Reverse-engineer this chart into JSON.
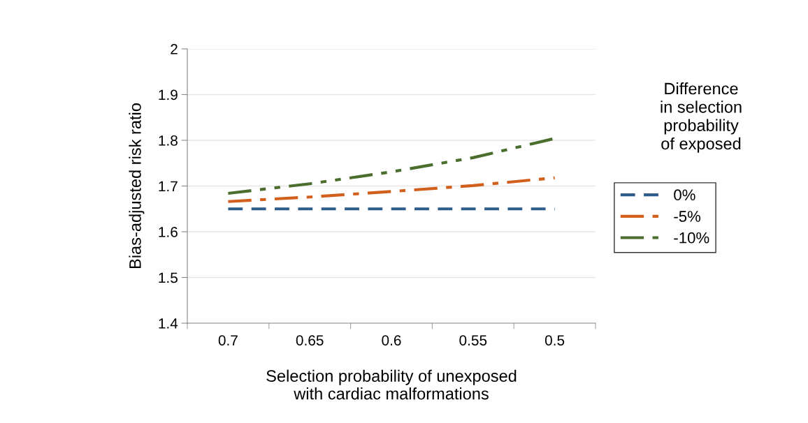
{
  "chart_data": {
    "type": "line",
    "xlabel": "Selection probability of unexposed\nwith cardiac malformations",
    "ylabel": "Bias-adjusted risk ratio",
    "legend_title": "Difference\nin selection\nprobability\nof exposed",
    "categories": [
      "0.7",
      "0.65",
      "0.6",
      "0.55",
      "0.5"
    ],
    "series": [
      {
        "name": "0%",
        "color": "#2e5d8c",
        "line_style": "dashed",
        "values": [
          1.65,
          1.65,
          1.65,
          1.65,
          1.65
        ]
      },
      {
        "name": "-5%",
        "color": "#d0601c",
        "line_style": "dashdot",
        "values": [
          1.666,
          1.676,
          1.688,
          1.701,
          1.718
        ]
      },
      {
        "name": "-10%",
        "color": "#4b6e2e",
        "line_style": "dashdotdot",
        "values": [
          1.684,
          1.705,
          1.731,
          1.762,
          1.804
        ]
      }
    ],
    "ylim": [
      1.4,
      2
    ],
    "yticks": [
      1.4,
      1.5,
      1.6,
      1.7,
      1.8,
      1.9,
      2
    ],
    "grid": "y",
    "legend": "right",
    "marker": "none"
  }
}
